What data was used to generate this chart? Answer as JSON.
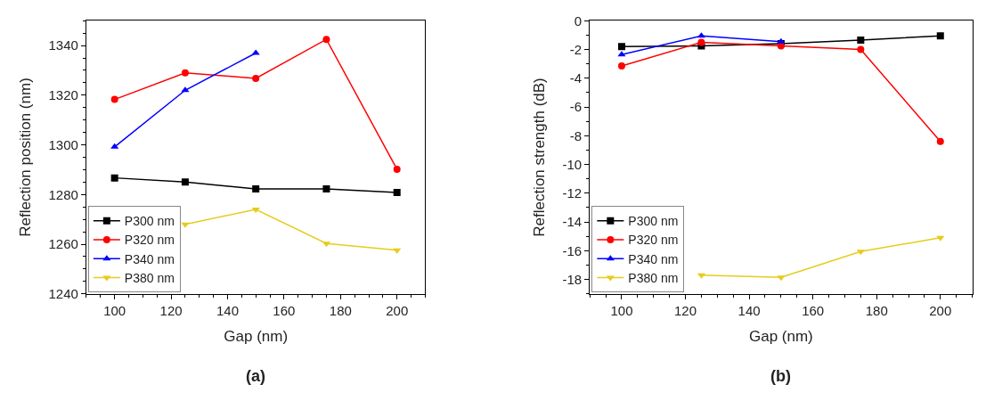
{
  "chart_data": [
    {
      "type": "line",
      "title": "(a)",
      "xlabel": "Gap (nm)",
      "ylabel": "Reflection position (nm)",
      "x": [
        100,
        125,
        150,
        175,
        200
      ],
      "xlim": [
        90,
        210
      ],
      "xticks": [
        100,
        120,
        140,
        160,
        180,
        200
      ],
      "ylim": [
        1240,
        1350
      ],
      "yticks": [
        1240,
        1260,
        1280,
        1300,
        1320,
        1340
      ],
      "legend": "bottom left",
      "series": [
        {
          "name": "P300 nm",
          "color": "#000000",
          "marker": "square",
          "values": [
            1286.7,
            1285,
            1282.3,
            1282.3,
            1280.8
          ]
        },
        {
          "name": "P320 nm",
          "color": "#ff0000",
          "marker": "circle",
          "values": [
            1318.3,
            1329,
            1326.8,
            1342.5,
            1290.2
          ]
        },
        {
          "name": "P340 nm",
          "color": "#0000ff",
          "marker": "triangle",
          "values": [
            1299.2,
            1322,
            1337,
            null,
            null
          ]
        },
        {
          "name": "P380 nm",
          "color": "#e6cc1a",
          "marker": "triangle-down",
          "values": [
            null,
            1268,
            1274,
            1260.3,
            1257.6
          ]
        }
      ]
    },
    {
      "type": "line",
      "title": "(b)",
      "xlabel": "Gap (nm)",
      "ylabel": "Reflection strength (dB)",
      "x": [
        100,
        125,
        150,
        175,
        200
      ],
      "xlim": [
        90,
        210
      ],
      "xticks": [
        100,
        120,
        140,
        160,
        180,
        200
      ],
      "ylim": [
        -19,
        0
      ],
      "yticks": [
        -18,
        -16,
        -14,
        -12,
        -10,
        -8,
        -6,
        -4,
        -2,
        0
      ],
      "legend": "bottom left",
      "series": [
        {
          "name": "P300 nm",
          "color": "#000000",
          "marker": "square",
          "values": [
            -1.8,
            -1.75,
            -1.6,
            -1.35,
            -1.05
          ]
        },
        {
          "name": "P320 nm",
          "color": "#ff0000",
          "marker": "circle",
          "values": [
            -3.15,
            -1.5,
            -1.75,
            -2.0,
            -8.4
          ]
        },
        {
          "name": "P340 nm",
          "color": "#0000ff",
          "marker": "triangle",
          "values": [
            -2.35,
            -1.05,
            -1.45,
            null,
            null
          ]
        },
        {
          "name": "P380 nm",
          "color": "#e6cc1a",
          "marker": "triangle-down",
          "values": [
            null,
            -17.7,
            -17.85,
            -16.05,
            -15.1
          ]
        }
      ]
    }
  ]
}
